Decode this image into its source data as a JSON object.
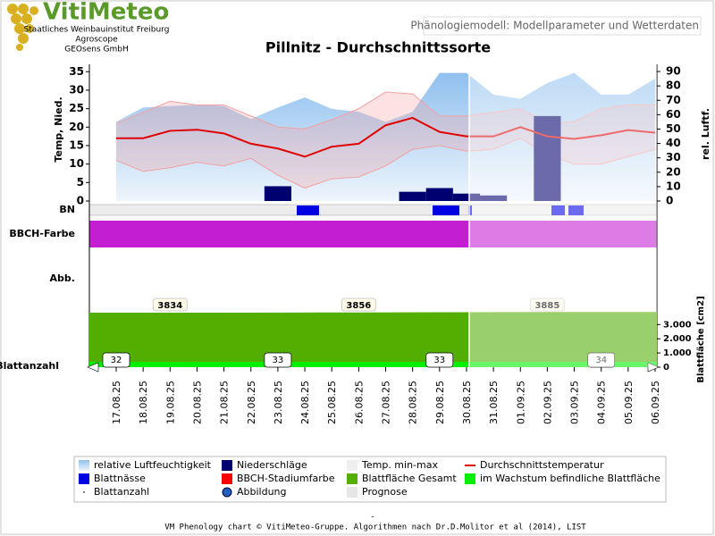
{
  "header": {
    "logo": "VitiMeteo",
    "lines": [
      "Staatliches Weinbauinstitut Freiburg",
      "Agroscope",
      "GEOsens GmbH"
    ],
    "subtitle": "Phänologiemodell: Modellparameter und Wetterdaten"
  },
  "chart_data": {
    "type": "combo",
    "title": "Pillnitz - Durchschnittssorte",
    "ylabel": "Temp, Nied.",
    "y2label": "rel. Luftf.",
    "categories": [
      "17.08.25",
      "18.08.25",
      "19.08.25",
      "20.08.25",
      "21.08.25",
      "22.08.25",
      "23.08.25",
      "24.08.25",
      "25.08.25",
      "26.08.25",
      "27.08.25",
      "28.08.25",
      "29.08.25",
      "30.08.25",
      "31.08.25",
      "01.09.25",
      "02.09.25",
      "03.09.25",
      "04.09.25",
      "05.09.25",
      "06.09.25"
    ],
    "ylim": [
      0,
      37
    ],
    "yticks": [
      0,
      5,
      10,
      15,
      20,
      25,
      30,
      35
    ],
    "y2lim": [
      0,
      95
    ],
    "y2ticks": [
      0,
      10,
      20,
      30,
      40,
      50,
      60,
      70,
      80,
      90
    ],
    "series": [
      {
        "name": "relative Luftfeuchtigkeit",
        "color": "#8fc0ee",
        "axis": "y2",
        "values": [
          55,
          65,
          66,
          67,
          66,
          57,
          65,
          72,
          64,
          62,
          55,
          62,
          89,
          89,
          74,
          71,
          82,
          89,
          74,
          74,
          85
        ]
      },
      {
        "name": "Niederschläge",
        "color": "#000070",
        "values": [
          0,
          0,
          0,
          0,
          0,
          0,
          4,
          0,
          0,
          0,
          0,
          2.5,
          3.5,
          2,
          1.5,
          0,
          23,
          0,
          0,
          0,
          0
        ]
      },
      {
        "name": "Temp. min-max",
        "color": "#f4a0a0",
        "high": [
          21,
          24,
          27,
          26,
          26,
          23,
          20,
          19.5,
          22,
          25,
          29.5,
          29,
          23,
          23,
          24,
          25,
          21,
          21.5,
          25,
          26,
          26
        ],
        "low": [
          11,
          8,
          9,
          10.5,
          9.5,
          11.5,
          7,
          3.5,
          6,
          6.5,
          9.5,
          14,
          15,
          13.5,
          14,
          17,
          12.5,
          10,
          10,
          12,
          14
        ]
      },
      {
        "name": "Durchschnittstemperatur",
        "color": "#e00000",
        "values": [
          17,
          17,
          19,
          19.3,
          18.3,
          15.5,
          14.2,
          12,
          14.7,
          15.5,
          20.5,
          22.5,
          18.7,
          17.5,
          17.5,
          20,
          17.5,
          16.8,
          17.8,
          19.2,
          18.5
        ]
      }
    ],
    "rows": [
      "BN",
      "BBCH-Farbe",
      "Abb.",
      "Blattanzahl"
    ],
    "leaf_area": {
      "ylabel": "Blattfläche [cm2]",
      "color": "#52ae00",
      "ylim": [
        0,
        3900
      ],
      "yticks": [
        {
          "value": 0,
          "label": "0"
        },
        {
          "value": 1000,
          "label": "1.000"
        },
        {
          "value": 2000,
          "label": "2.000"
        },
        {
          "value": 3000,
          "label": "3.000"
        }
      ],
      "categories": [
        "19.08.25",
        "26.08.25",
        "02.09.25"
      ],
      "values": [
        3834,
        3856,
        3885
      ]
    },
    "leaf_count": {
      "categories": [
        "17.08.25",
        "23.08.25",
        "29.08.25",
        "04.09.25"
      ],
      "values": [
        32,
        33,
        33,
        34
      ]
    },
    "legend": [
      {
        "name": "Blattnässe",
        "color": "#0000e0"
      },
      {
        "name": "BBCH-Stadiumfarbe",
        "color": "#ff0000"
      },
      {
        "name": "Blattfläche Gesamt",
        "color": "#52ae00"
      },
      {
        "name": "im Wachstum befindliche Blattfläche",
        "color": "#00ee00"
      },
      {
        "name": "Blattanzahl",
        "color": "#555555"
      },
      {
        "name": "Abbildung",
        "color": "#2060c0"
      },
      {
        "name": "Prognose",
        "color": "#e6e6e6"
      }
    ],
    "footer": "VM Phenology chart © VitiMeteo-Gruppe. Algorithmen nach Dr.D.Molitor et al (2014), LIST"
  }
}
